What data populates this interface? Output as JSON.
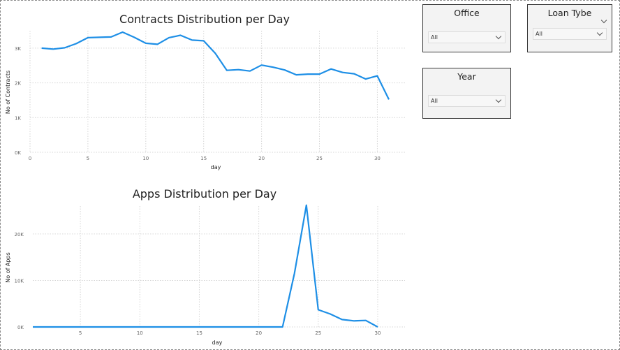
{
  "colors": {
    "series": "#1e8fe6",
    "grid": "#d6d6d6",
    "slicer_bg": "#f3f3f3"
  },
  "slicers": {
    "office": {
      "title": "Office",
      "selected": "All",
      "icon": "chevron-down-icon"
    },
    "loan_type": {
      "title": "Loan Tybe",
      "selected": "All",
      "icon": "chevron-down-icon"
    },
    "year": {
      "title": "Year",
      "selected": "All",
      "icon": "chevron-down-icon"
    }
  },
  "chart_data": [
    {
      "type": "line",
      "title": "Contracts Distribution per Day",
      "xlabel": "day",
      "ylabel": "No of Contracts",
      "xlim": [
        0,
        31
      ],
      "ylim": [
        0,
        3500
      ],
      "x_ticks": [
        "0",
        "5",
        "10",
        "15",
        "20",
        "25",
        "30"
      ],
      "y_ticks": [
        "0K",
        "1K",
        "2K",
        "3K"
      ],
      "grid": true,
      "series": [
        {
          "x": [
            1,
            2,
            3,
            4,
            5,
            6,
            7,
            8,
            9,
            10,
            11,
            12,
            13,
            14,
            15,
            16,
            17,
            18,
            19,
            20,
            21,
            22,
            23,
            24,
            25,
            26,
            27,
            28,
            29,
            30,
            31
          ],
          "values": [
            3000,
            2970,
            3010,
            3130,
            3300,
            3310,
            3320,
            3460,
            3310,
            3140,
            3110,
            3300,
            3370,
            3230,
            3210,
            2850,
            2360,
            2380,
            2340,
            2510,
            2450,
            2370,
            2230,
            2250,
            2250,
            2400,
            2300,
            2260,
            2110,
            2200,
            1520
          ]
        }
      ]
    },
    {
      "type": "line",
      "title": "Apps Distribution per Day",
      "xlabel": "day",
      "ylabel": "No of Apps",
      "xlim": [
        1,
        31
      ],
      "ylim": [
        0,
        26000
      ],
      "x_ticks": [
        "5",
        "10",
        "15",
        "20",
        "25",
        "30"
      ],
      "y_ticks": [
        "0K",
        "10K",
        "20K"
      ],
      "grid": true,
      "series": [
        {
          "x": [
            1,
            2,
            3,
            4,
            5,
            6,
            7,
            8,
            9,
            10,
            11,
            12,
            13,
            14,
            15,
            16,
            17,
            18,
            19,
            20,
            21,
            22,
            23,
            24,
            25,
            26,
            27,
            28,
            29,
            30
          ],
          "values": [
            0,
            0,
            0,
            0,
            0,
            0,
            0,
            0,
            0,
            0,
            0,
            0,
            0,
            0,
            0,
            0,
            0,
            0,
            0,
            0,
            0,
            0,
            11500,
            26200,
            3700,
            2800,
            1600,
            1300,
            1400,
            0
          ]
        }
      ]
    }
  ]
}
